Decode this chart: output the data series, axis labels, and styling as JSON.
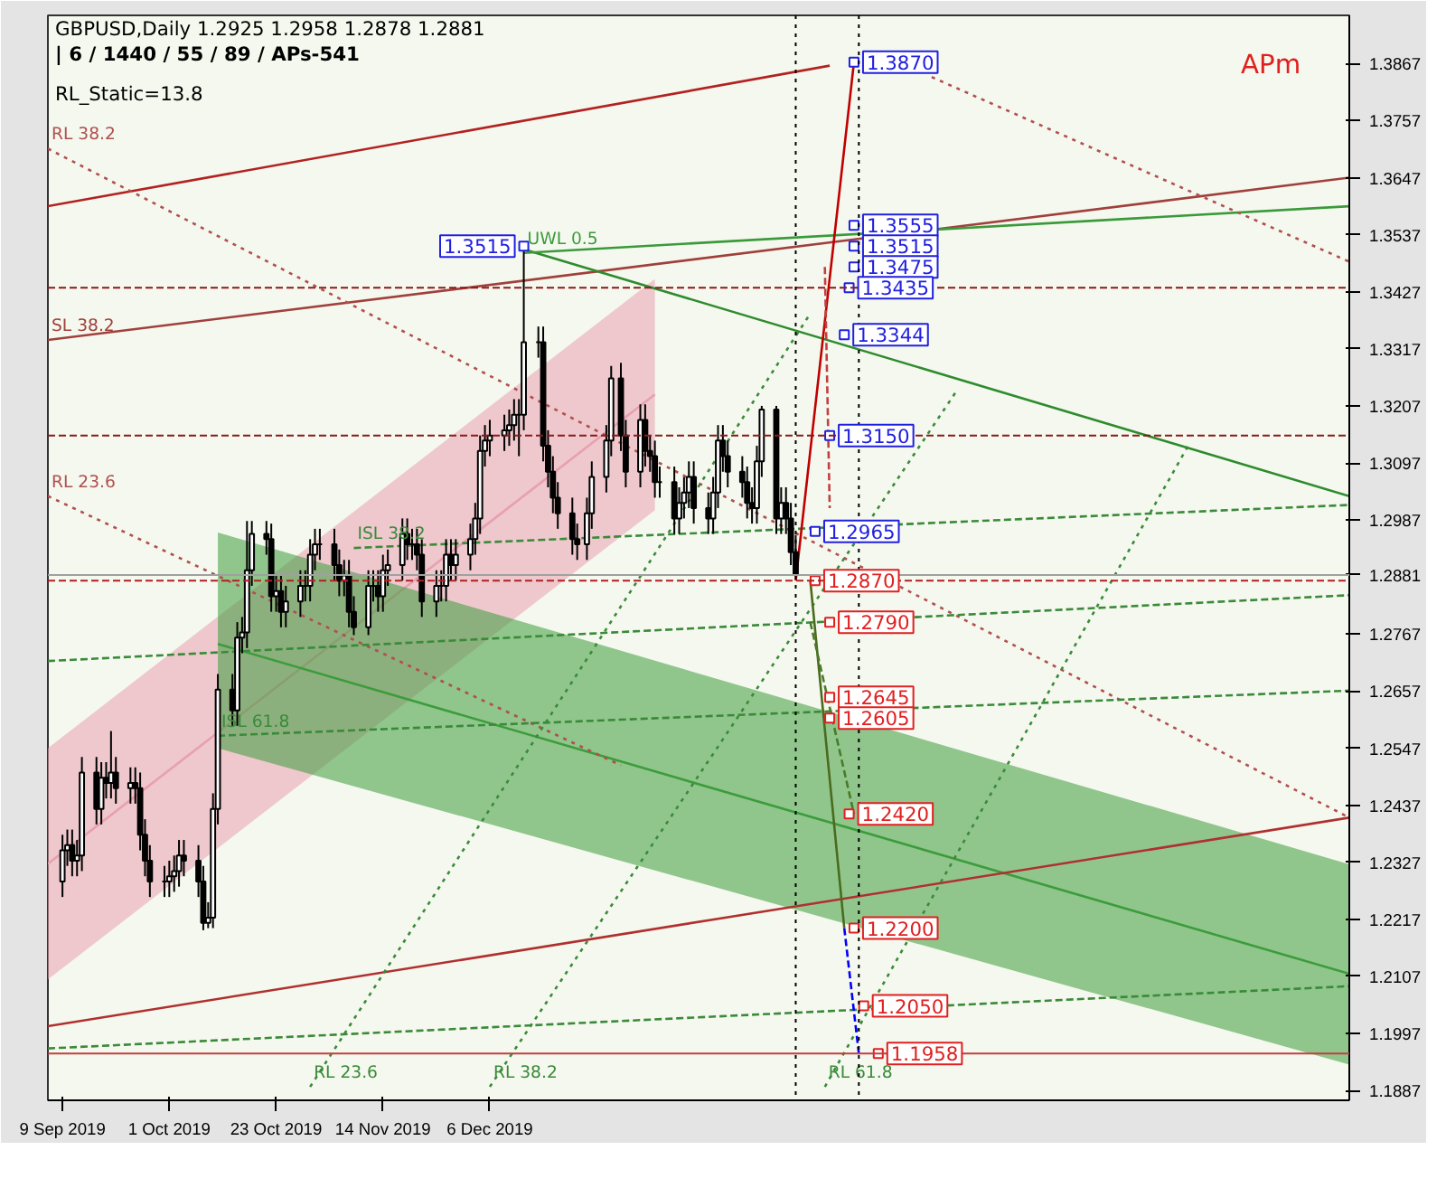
{
  "chart_data": {
    "type": "candlestick",
    "title": "GBPUSD,Daily  1.2925 1.2958 1.2878 1.2881",
    "subtitle": "| 6 / 1440 / 55 / 89 / APs-541",
    "x": [
      "2019-09-09",
      "2019-09-10",
      "2019-09-11",
      "2019-09-12",
      "2019-09-13",
      "2019-09-16",
      "2019-09-17",
      "2019-09-18",
      "2019-09-19",
      "2019-09-20",
      "2019-09-23",
      "2019-09-24",
      "2019-09-25",
      "2019-09-26",
      "2019-09-27",
      "2019-09-30",
      "2019-10-01",
      "2019-10-02",
      "2019-10-03",
      "2019-10-04",
      "2019-10-07",
      "2019-10-08",
      "2019-10-09",
      "2019-10-10",
      "2019-10-11",
      "2019-10-14",
      "2019-10-15",
      "2019-10-16",
      "2019-10-17",
      "2019-10-18",
      "2019-10-21",
      "2019-10-22",
      "2019-10-23",
      "2019-10-24",
      "2019-10-25",
      "2019-10-28",
      "2019-10-29",
      "2019-10-30",
      "2019-10-31",
      "2019-11-01",
      "2019-11-04",
      "2019-11-05",
      "2019-11-06",
      "2019-11-07",
      "2019-11-08",
      "2019-11-11",
      "2019-11-12",
      "2019-11-13",
      "2019-11-14",
      "2019-11-15",
      "2019-11-18",
      "2019-11-19",
      "2019-11-20",
      "2019-11-21",
      "2019-11-22",
      "2019-11-25",
      "2019-11-26",
      "2019-11-27",
      "2019-11-28",
      "2019-11-29",
      "2019-12-02",
      "2019-12-03",
      "2019-12-04",
      "2019-12-05",
      "2019-12-06",
      "2019-12-09",
      "2019-12-10",
      "2019-12-11",
      "2019-12-12",
      "2019-12-13",
      "2019-12-16",
      "2019-12-17",
      "2019-12-18",
      "2019-12-19",
      "2019-12-20",
      "2019-12-23",
      "2019-12-24",
      "2019-12-26",
      "2019-12-27",
      "2019-12-30",
      "2019-12-31",
      "2020-01-02",
      "2020-01-03",
      "2020-01-06",
      "2020-01-07",
      "2020-01-08",
      "2020-01-09",
      "2020-01-10",
      "2020-01-13",
      "2020-01-14",
      "2020-01-15",
      "2020-01-16",
      "2020-01-17",
      "2020-01-20",
      "2020-01-21",
      "2020-01-22",
      "2020-01-23",
      "2020-01-24",
      "2020-01-27",
      "2020-01-28",
      "2020-01-29",
      "2020-01-30",
      "2020-01-31",
      "2020-02-03",
      "2020-02-04",
      "2020-02-05",
      "2020-02-06",
      "2020-02-07"
    ],
    "ohlc": [
      [
        1.229,
        1.238,
        1.226,
        1.235
      ],
      [
        1.235,
        1.239,
        1.232,
        1.236
      ],
      [
        1.236,
        1.239,
        1.23,
        1.233
      ],
      [
        1.233,
        1.237,
        1.23,
        1.234
      ],
      [
        1.234,
        1.253,
        1.231,
        1.25
      ],
      [
        1.25,
        1.253,
        1.24,
        1.243
      ],
      [
        1.243,
        1.252,
        1.24,
        1.249
      ],
      [
        1.249,
        1.252,
        1.245,
        1.248
      ],
      [
        1.248,
        1.258,
        1.245,
        1.25
      ],
      [
        1.25,
        1.253,
        1.244,
        1.247
      ],
      [
        1.247,
        1.251,
        1.244,
        1.248
      ],
      [
        1.248,
        1.251,
        1.244,
        1.247
      ],
      [
        1.247,
        1.25,
        1.235,
        1.238
      ],
      [
        1.238,
        1.241,
        1.23,
        1.233
      ],
      [
        1.233,
        1.236,
        1.226,
        1.229
      ],
      [
        1.229,
        1.232,
        1.226,
        1.229
      ],
      [
        1.229,
        1.233,
        1.226,
        1.23
      ],
      [
        1.23,
        1.234,
        1.227,
        1.231
      ],
      [
        1.231,
        1.237,
        1.228,
        1.234
      ],
      [
        1.234,
        1.237,
        1.23,
        1.233
      ],
      [
        1.233,
        1.236,
        1.226,
        1.229
      ],
      [
        1.229,
        1.232,
        1.2196,
        1.221
      ],
      [
        1.221,
        1.225,
        1.22,
        1.222
      ],
      [
        1.222,
        1.246,
        1.22,
        1.243
      ],
      [
        1.243,
        1.269,
        1.24,
        1.266
      ],
      [
        1.266,
        1.269,
        1.259,
        1.262
      ],
      [
        1.262,
        1.279,
        1.259,
        1.276
      ],
      [
        1.276,
        1.28,
        1.273,
        1.277
      ],
      [
        1.277,
        1.2985,
        1.274,
        1.289
      ],
      [
        1.289,
        1.2985,
        1.286,
        1.296
      ],
      [
        1.296,
        1.2985,
        1.292,
        1.295
      ],
      [
        1.295,
        1.298,
        1.281,
        1.284
      ],
      [
        1.284,
        1.288,
        1.281,
        1.285
      ],
      [
        1.285,
        1.288,
        1.278,
        1.281
      ],
      [
        1.281,
        1.286,
        1.278,
        1.283
      ],
      [
        1.283,
        1.289,
        1.28,
        1.286
      ],
      [
        1.286,
        1.289,
        1.283,
        1.286
      ],
      [
        1.286,
        1.295,
        1.283,
        1.292
      ],
      [
        1.292,
        1.297,
        1.289,
        1.294
      ],
      [
        1.294,
        1.297,
        1.291,
        1.294
      ],
      [
        1.294,
        1.297,
        1.287,
        1.29
      ],
      [
        1.29,
        1.293,
        1.284,
        1.287
      ],
      [
        1.287,
        1.291,
        1.284,
        1.288
      ],
      [
        1.288,
        1.291,
        1.278,
        1.281
      ],
      [
        1.281,
        1.284,
        1.2765,
        1.278
      ],
      [
        1.278,
        1.289,
        1.2765,
        1.286
      ],
      [
        1.286,
        1.289,
        1.283,
        1.286
      ],
      [
        1.286,
        1.289,
        1.281,
        1.284
      ],
      [
        1.284,
        1.292,
        1.281,
        1.289
      ],
      [
        1.289,
        1.293,
        1.286,
        1.29
      ],
      [
        1.29,
        1.299,
        1.287,
        1.296
      ],
      [
        1.296,
        1.299,
        1.291,
        1.294
      ],
      [
        1.294,
        1.297,
        1.291,
        1.294
      ],
      [
        1.294,
        1.297,
        1.289,
        1.292
      ],
      [
        1.292,
        1.295,
        1.28,
        1.283
      ],
      [
        1.283,
        1.289,
        1.28,
        1.286
      ],
      [
        1.286,
        1.289,
        1.283,
        1.286
      ],
      [
        1.286,
        1.295,
        1.283,
        1.292
      ],
      [
        1.292,
        1.295,
        1.287,
        1.29
      ],
      [
        1.29,
        1.295,
        1.287,
        1.292
      ],
      [
        1.292,
        1.298,
        1.289,
        1.295
      ],
      [
        1.295,
        1.302,
        1.292,
        1.299
      ],
      [
        1.299,
        1.315,
        1.296,
        1.312
      ],
      [
        1.312,
        1.317,
        1.309,
        1.314
      ],
      [
        1.314,
        1.318,
        1.311,
        1.315
      ],
      [
        1.315,
        1.319,
        1.312,
        1.316
      ],
      [
        1.316,
        1.32,
        1.313,
        1.317
      ],
      [
        1.317,
        1.322,
        1.314,
        1.319
      ],
      [
        1.319,
        1.322,
        1.311,
        1.319
      ],
      [
        1.319,
        1.3515,
        1.316,
        1.333
      ],
      [
        1.333,
        1.336,
        1.33,
        1.333
      ],
      [
        1.333,
        1.336,
        1.31,
        1.313
      ],
      [
        1.313,
        1.316,
        1.305,
        1.308
      ],
      [
        1.308,
        1.311,
        1.3,
        1.303
      ],
      [
        1.303,
        1.306,
        1.297,
        1.3
      ],
      [
        1.3,
        1.303,
        1.292,
        1.295
      ],
      [
        1.295,
        1.298,
        1.291,
        1.294
      ],
      [
        1.294,
        1.303,
        1.291,
        1.3
      ],
      [
        1.3,
        1.31,
        1.297,
        1.307
      ],
      [
        1.307,
        1.317,
        1.304,
        1.314
      ],
      [
        1.314,
        1.3284,
        1.311,
        1.326
      ],
      [
        1.326,
        1.329,
        1.312,
        1.315
      ],
      [
        1.315,
        1.318,
        1.305,
        1.308
      ],
      [
        1.308,
        1.321,
        1.305,
        1.318
      ],
      [
        1.318,
        1.321,
        1.309,
        1.312
      ],
      [
        1.312,
        1.315,
        1.308,
        1.311
      ],
      [
        1.311,
        1.314,
        1.303,
        1.306
      ],
      [
        1.306,
        1.309,
        1.303,
        1.306
      ],
      [
        1.306,
        1.309,
        1.296,
        1.299
      ],
      [
        1.299,
        1.305,
        1.296,
        1.302
      ],
      [
        1.302,
        1.307,
        1.299,
        1.304
      ],
      [
        1.304,
        1.31,
        1.301,
        1.307
      ],
      [
        1.307,
        1.31,
        1.298,
        1.301
      ],
      [
        1.301,
        1.304,
        1.296,
        1.299
      ],
      [
        1.299,
        1.307,
        1.296,
        1.304
      ],
      [
        1.304,
        1.317,
        1.301,
        1.314
      ],
      [
        1.314,
        1.317,
        1.308,
        1.311
      ],
      [
        1.311,
        1.314,
        1.305,
        1.308
      ],
      [
        1.308,
        1.311,
        1.303,
        1.306
      ],
      [
        1.306,
        1.309,
        1.299,
        1.302
      ],
      [
        1.302,
        1.305,
        1.298,
        1.301
      ],
      [
        1.301,
        1.313,
        1.298,
        1.31
      ],
      [
        1.31,
        1.3207,
        1.307,
        1.32
      ],
      [
        1.32,
        1.3207,
        1.296,
        1.299
      ],
      [
        1.299,
        1.305,
        1.296,
        1.302
      ],
      [
        1.302,
        1.305,
        1.296,
        1.299
      ],
      [
        1.299,
        1.302,
        1.29,
        1.2925
      ],
      [
        1.2925,
        1.2958,
        1.2878,
        1.2881
      ]
    ],
    "color": "#000000",
    "series": [
      {
        "type": "line",
        "color": "#e8a0b0",
        "x": [
          "2019-09-06",
          "2020-01-09"
        ],
        "values": [
          1.2324,
          1.3229
        ],
        "lower": [
          1.2101,
          1.3006
        ],
        "upper": [
          1.2547,
          1.3452
        ]
      },
      {
        "type": "line",
        "color": "#3c9c3c",
        "x": [
          "2019-10-11",
          "2020-05-31"
        ],
        "values": [
          1.2748,
          1.2112
        ],
        "lower": [
          1.2547,
          1.1937
        ],
        "upper": [
          1.2963,
          1.2323
        ]
      },
      {
        "type": "line",
        "color": "#b22222",
        "x": [
          "2019-09-06",
          "2020-02-14"
        ],
        "values": [
          1.3592,
          1.3863
        ]
      },
      {
        "name": "SL 38.2",
        "type": "line",
        "color": "#a0403c",
        "x": [
          "2019-09-06",
          "2020-05-31"
        ],
        "values": [
          1.3334,
          1.3647
        ]
      },
      {
        "type": "line",
        "color": "#b03030",
        "x": [
          "2019-09-06",
          "2020-05-31"
        ],
        "values": [
          1.2011,
          1.2413
        ]
      },
      {
        "type": "line",
        "color": "#2e8b2e",
        "x": [
          "2019-12-13",
          "2020-05-31"
        ],
        "values": [
          1.3509,
          1.3033
        ]
      },
      {
        "name": "UWL 0.5",
        "type": "line",
        "color": "#3a9a3a",
        "x": [
          "2019-12-13",
          "2020-05-31"
        ],
        "values": [
          1.3502,
          1.3592
        ]
      },
      {
        "name": "RL 38.2",
        "type": "line",
        "line_style": "dotted",
        "color": "#b05050",
        "x": [
          "2019-09-06",
          "2020-05-31"
        ],
        "values": [
          1.3703,
          1.2413
        ]
      },
      {
        "name": "RL 23.6",
        "type": "line",
        "line_style": "dotted",
        "color": "#b05050",
        "x": [
          "2019-09-06",
          "2020-01-02"
        ],
        "values": [
          1.3033,
          1.2514
        ]
      },
      {
        "type": "line",
        "line_style": "dotted",
        "color": "#b05050",
        "x": [
          "2020-03-06",
          "2020-05-31"
        ],
        "values": [
          1.3841,
          1.3485
        ]
      },
      {
        "name": "ISL 38.2",
        "type": "line",
        "line_style": "dashed",
        "color": "#3a8a3a",
        "x": [
          "2019-11-08",
          "2020-05-31"
        ],
        "values": [
          1.2933,
          1.3016
        ]
      },
      {
        "type": "line",
        "line_style": "dashed",
        "color": "#3a8a3a",
        "x": [
          "2019-09-06",
          "2020-05-31"
        ],
        "values": [
          1.2715,
          1.2842
        ]
      },
      {
        "name": "ISL 61.8",
        "type": "line",
        "line_style": "dashed",
        "color": "#3a8a3a",
        "x": [
          "2019-10-11",
          "2020-05-31"
        ],
        "values": [
          1.2571,
          1.2658
        ]
      },
      {
        "type": "line",
        "line_style": "dashed",
        "color": "#3a8a3a",
        "x": [
          "2019-09-06",
          "2020-05-31"
        ],
        "values": [
          1.1968,
          1.2088
        ]
      },
      {
        "name": "RL 23.6",
        "type": "line",
        "line_style": "dotted",
        "color": "#3a8a3a",
        "x": [
          "2019-10-30",
          "2020-02-10"
        ],
        "values": [
          1.1894,
          1.3385
        ]
      },
      {
        "name": "RL 38.2",
        "type": "line",
        "line_style": "dotted",
        "color": "#3a8a3a",
        "x": [
          "2019-12-06",
          "2020-03-11"
        ],
        "values": [
          1.1894,
          1.3234
        ]
      },
      {
        "name": "RL 61.8",
        "type": "line",
        "line_style": "dotted",
        "color": "#3a8a3a",
        "x": [
          "2020-02-13",
          "2020-04-28"
        ],
        "values": [
          1.1894,
          1.3133
        ]
      },
      {
        "type": "line",
        "color": "#c00000",
        "x": [
          "2020-02-07",
          "2020-02-19"
        ],
        "values": [
          1.287,
          1.387
        ]
      },
      {
        "type": "line",
        "line_style": "dashed",
        "color": "#c04040",
        "x": [
          "2020-02-13",
          "2020-02-14"
        ],
        "values": [
          1.3475,
          1.301
        ]
      },
      {
        "type": "line",
        "color": "#4a6b1e",
        "x": [
          "2020-02-10",
          "2020-02-17"
        ],
        "values": [
          1.287,
          1.22
        ]
      },
      {
        "type": "line",
        "line_style": "dashed",
        "color": "#4a7a2a",
        "x": [
          "2020-02-10",
          "2020-02-19"
        ],
        "values": [
          1.279,
          1.242
        ]
      },
      {
        "type": "line",
        "line_style": "dashed",
        "color": "#0000ff",
        "x": [
          "2020-02-17",
          "2020-02-20"
        ],
        "values": [
          1.22,
          1.1958
        ]
      },
      {
        "type": "scatter",
        "marker": "square",
        "color": "#2020e0",
        "x": [
          "2019-12-13",
          "2020-02-19",
          "2020-02-19",
          "2020-02-19",
          "2020-02-19",
          "2020-02-18",
          "2020-02-17",
          "2020-02-14",
          "2020-02-11"
        ],
        "values": [
          1.3515,
          1.387,
          1.3555,
          1.3515,
          1.3475,
          1.3435,
          1.3344,
          1.315,
          1.2965
        ],
        "value_labels": [
          "1.3515",
          "1.3870",
          "1.3555",
          "1.3515",
          "1.3475",
          "1.3435",
          "1.3344",
          "1.3150",
          "1.2965"
        ]
      },
      {
        "type": "scatter",
        "marker": "square",
        "color": "#e02020",
        "x": [
          "2020-02-11",
          "2020-02-14",
          "2020-02-14",
          "2020-02-14",
          "2020-02-18",
          "2020-02-19",
          "2020-02-21",
          "2020-02-24"
        ],
        "values": [
          1.287,
          1.279,
          1.2645,
          1.2605,
          1.242,
          1.22,
          1.205,
          1.1958
        ],
        "value_labels": [
          "1.2870",
          "1.2790",
          "1.2645",
          "1.2605",
          "1.2420",
          "1.2200",
          "1.2050",
          "1.1958"
        ]
      }
    ],
    "ref_lines": [
      {
        "axis": "y",
        "value": 1.3435,
        "color": "#8b1a1a",
        "line_style": "dashed"
      },
      {
        "axis": "y",
        "value": 1.315,
        "color": "#8b1a1a",
        "line_style": "dashed"
      },
      {
        "axis": "y",
        "value": 1.287,
        "color": "#b02020",
        "line_style": "dashed"
      },
      {
        "axis": "y",
        "value": 1.1958,
        "color": "#c04040",
        "line_style": "solid"
      },
      {
        "axis": "y",
        "value": 1.2881,
        "color": "#a0a0a0",
        "line_style": "solid",
        "label": "1.2881"
      },
      {
        "axis": "x",
        "value": "2020-02-07",
        "color": "#000000",
        "line_style": "dotted"
      },
      {
        "axis": "x",
        "value": "2020-02-20",
        "color": "#000000",
        "line_style": "dotted"
      }
    ],
    "annotations": [
      "RL_Static=13.8",
      "APm"
    ],
    "xlim": [
      "2019-09-06",
      "2020-05-31"
    ],
    "ylim": [
      1.1868,
      1.396
    ],
    "xticks": [
      {
        "value": "2019-09-09",
        "label": "9 Sep 2019"
      },
      {
        "value": "2019-10-01",
        "label": "1 Oct 2019"
      },
      {
        "value": "2019-10-23",
        "label": "23 Oct 2019"
      },
      {
        "value": "2019-11-14",
        "label": "14 Nov 2019"
      },
      {
        "value": "2019-12-06",
        "label": "6 Dec 2019"
      }
    ],
    "yticks": [
      1.3867,
      1.3757,
      1.3647,
      1.3537,
      1.3427,
      1.3317,
      1.3207,
      1.3097,
      1.2987,
      1.2767,
      1.2657,
      1.2547,
      1.2437,
      1.2327,
      1.2217,
      1.2107,
      1.1997,
      1.1887
    ]
  }
}
